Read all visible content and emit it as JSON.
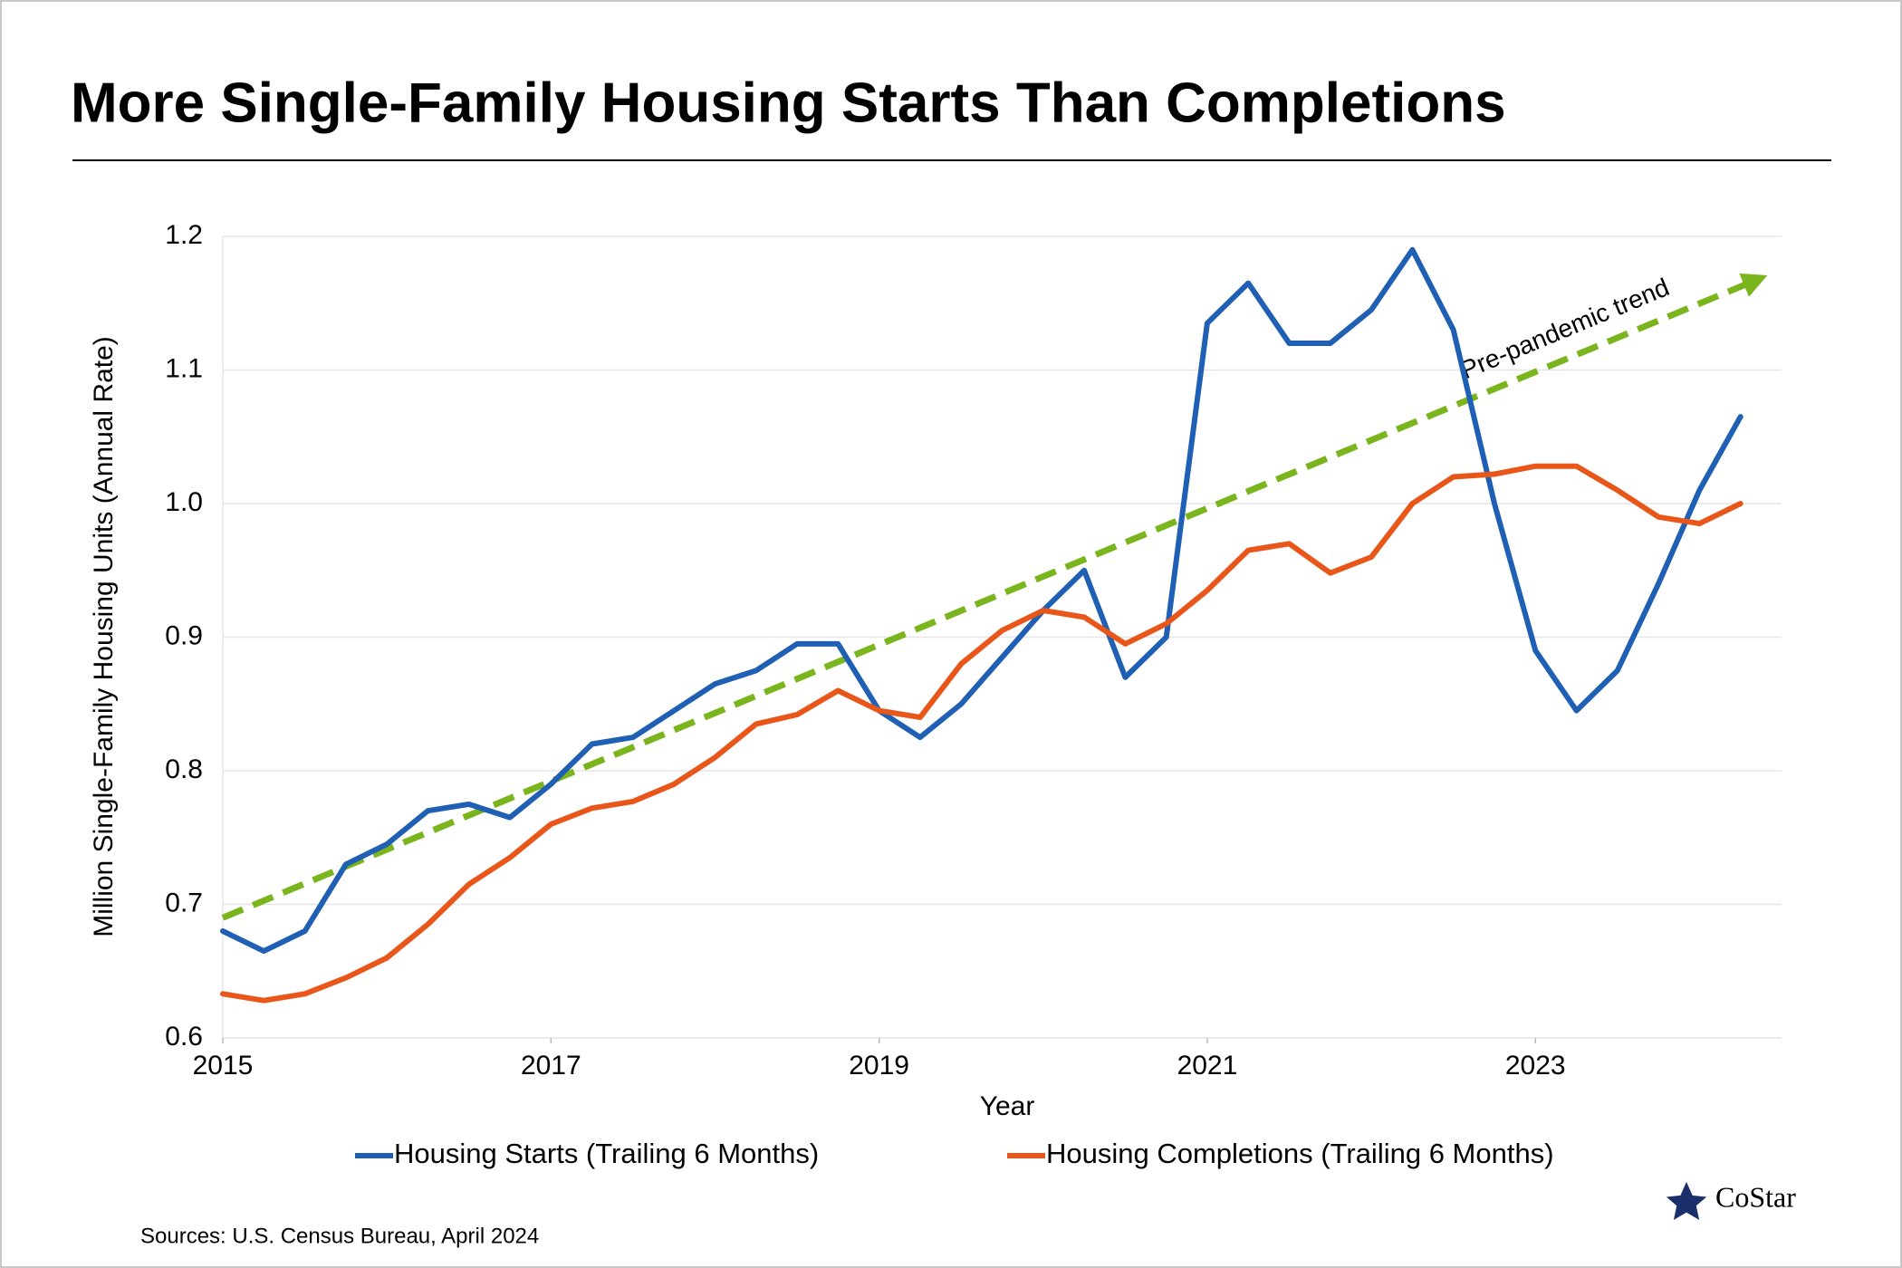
{
  "chart_data": {
    "type": "line",
    "title": "More Single-Family Housing Starts Than Completions",
    "y_label": "Million Single-Family Housing Units (Annual Rate)",
    "x_label": "Year",
    "source": "Sources: U.S. Census Bureau, April 2024",
    "logo": "CoStar",
    "x": [
      2015,
      2015.25,
      2015.5,
      2015.75,
      2016,
      2016.25,
      2016.5,
      2016.75,
      2017,
      2017.25,
      2017.5,
      2017.75,
      2018,
      2018.25,
      2018.5,
      2018.75,
      2019,
      2019.25,
      2019.5,
      2019.75,
      2020,
      2020.25,
      2020.5,
      2020.75,
      2021,
      2021.25,
      2021.5,
      2021.75,
      2022,
      2022.25,
      2022.5,
      2022.75,
      2023,
      2023.25,
      2023.5,
      2023.75,
      2024,
      2024.25
    ],
    "series": [
      {
        "name": "Housing Starts (Trailing 6 Months)",
        "color": "#1f5fb4",
        "values": [
          0.68,
          0.665,
          0.68,
          0.73,
          0.745,
          0.77,
          0.775,
          0.765,
          0.79,
          0.82,
          0.825,
          0.845,
          0.865,
          0.875,
          0.895,
          0.895,
          0.845,
          0.825,
          0.85,
          0.885,
          0.92,
          0.95,
          0.87,
          0.9,
          1.135,
          1.165,
          1.12,
          1.12,
          1.145,
          1.19,
          1.13,
          1.0,
          0.89,
          0.845,
          0.875,
          0.94,
          1.01,
          1.065
        ]
      },
      {
        "name": "Housing Completions (Trailing 6 Months)",
        "color": "#e8561a",
        "values": [
          0.633,
          0.628,
          0.633,
          0.645,
          0.66,
          0.685,
          0.715,
          0.735,
          0.76,
          0.772,
          0.777,
          0.79,
          0.81,
          0.835,
          0.842,
          0.86,
          0.845,
          0.84,
          0.88,
          0.905,
          0.92,
          0.915,
          0.895,
          0.91,
          0.935,
          0.965,
          0.97,
          0.948,
          0.96,
          1.0,
          1.02,
          1.022,
          1.028,
          1.028,
          1.01,
          0.99,
          0.985,
          1.0
        ]
      }
    ],
    "trend": {
      "label": "Pre-pandemic trend",
      "color": "#7ab51d",
      "x": [
        2015,
        2024.3
      ],
      "y": [
        0.69,
        1.165
      ]
    },
    "xlim": [
      2015,
      2024.5
    ],
    "xticks": [
      2015,
      2017,
      2019,
      2021,
      2023
    ],
    "ylim": [
      0.6,
      1.2
    ],
    "yticks": [
      0.6,
      0.7,
      0.8,
      0.9,
      {
        "value": 1.0,
        "label": "1.0"
      },
      1.1,
      1.2
    ],
    "grid": true
  }
}
